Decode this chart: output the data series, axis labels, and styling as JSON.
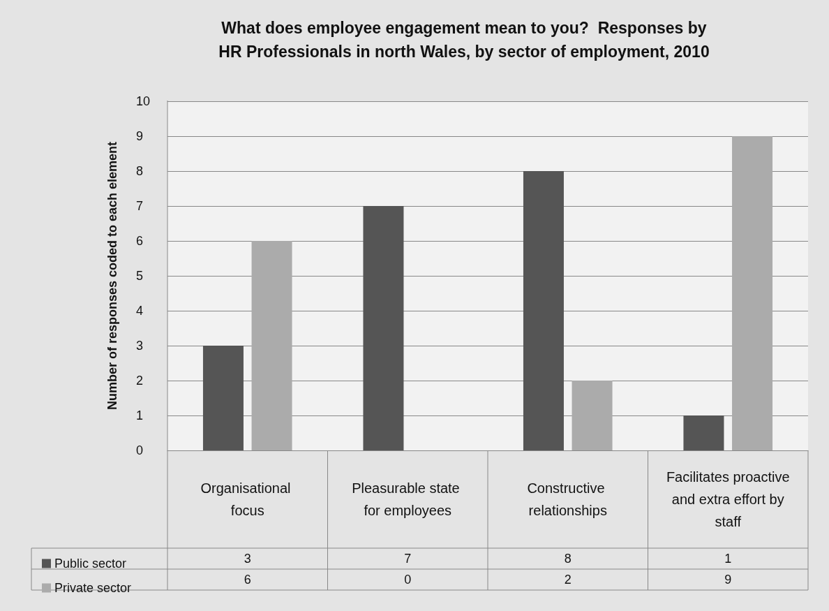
{
  "chart_data": {
    "type": "bar",
    "title": "What does employee engagement mean to you?  Responses by\nHR Professionals in north Wales, by sector of employment, 2010",
    "ylabel": "Number of responses coded to each element",
    "categories": [
      "Organisational focus",
      "Pleasurable state for employees",
      "Constructive relationships",
      "Facilitates proactive and extra effort by staff"
    ],
    "series": [
      {
        "name": "Public sector",
        "color": "#555555",
        "values": [
          3,
          7,
          8,
          1
        ]
      },
      {
        "name": "Private sector",
        "color": "#ababab",
        "values": [
          6,
          0,
          2,
          9
        ]
      }
    ],
    "ylim": [
      0,
      10
    ],
    "yticks": [
      0,
      1,
      2,
      3,
      4,
      5,
      6,
      7,
      8,
      9,
      10
    ],
    "grid": "y",
    "legend": "bottom left",
    "data_labels": true
  }
}
